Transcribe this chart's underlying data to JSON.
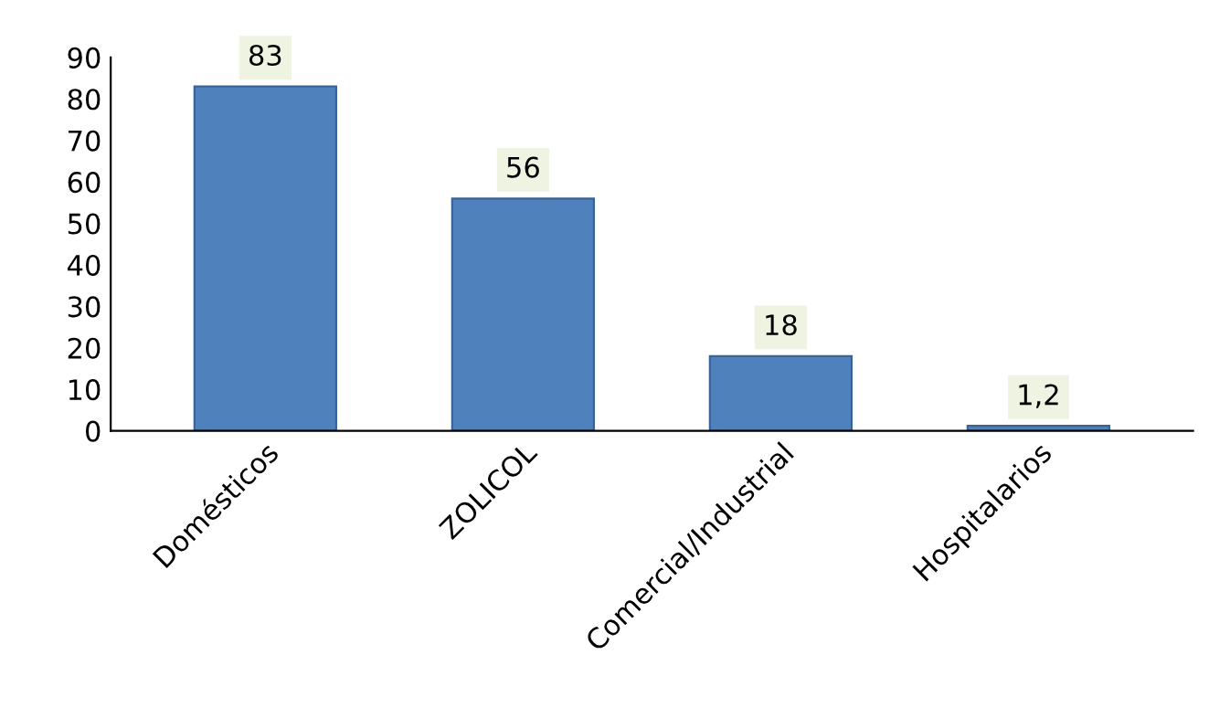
{
  "chart_data": {
    "type": "bar",
    "categories": [
      "Domésticos",
      "ZOLICOL",
      "Comercial/Industrial",
      "Hospitalarios"
    ],
    "values": [
      83,
      56,
      18,
      1.2
    ],
    "value_labels": [
      "83",
      "56",
      "18",
      "1,2"
    ],
    "color": "#4f81bd",
    "ylim": [
      0,
      90
    ],
    "yticks": [
      0,
      10,
      20,
      30,
      40,
      50,
      60,
      70,
      80,
      90
    ],
    "grid": false
  }
}
